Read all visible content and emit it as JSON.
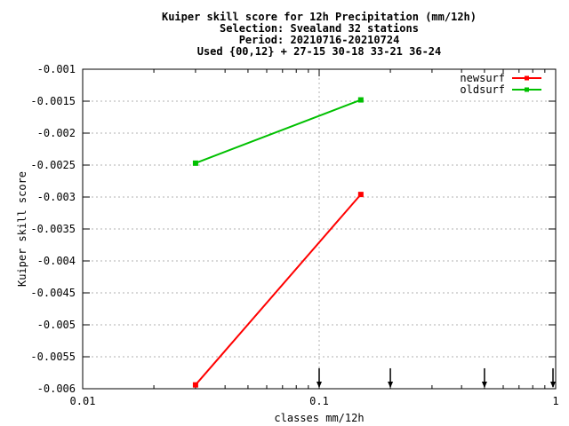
{
  "chart_data": {
    "type": "line",
    "title_lines": [
      "Kuiper skill score  for 12h Precipitation (mm/12h)",
      "Selection: Svealand     32 stations",
      "Period: 20210716-20210724",
      "Used {00,12} + 27-15 30-18 33-21 36-24"
    ],
    "xlabel": "classes mm/12h",
    "ylabel": "Kuiper skill score",
    "x_scale": "log",
    "xlim": [
      0.01,
      1
    ],
    "ylim": [
      -0.006,
      -0.001
    ],
    "x_ticks": [
      {
        "value": 0.01,
        "label": "0.01"
      },
      {
        "value": 0.1,
        "label": "0.1"
      },
      {
        "value": 1,
        "label": "1"
      }
    ],
    "y_ticks": [
      {
        "value": -0.001,
        "label": "-0.001"
      },
      {
        "value": -0.0015,
        "label": "-0.0015"
      },
      {
        "value": -0.002,
        "label": "-0.002"
      },
      {
        "value": -0.0025,
        "label": "-0.0025"
      },
      {
        "value": -0.003,
        "label": "-0.003"
      },
      {
        "value": -0.0035,
        "label": "-0.0035"
      },
      {
        "value": -0.004,
        "label": "-0.004"
      },
      {
        "value": -0.0045,
        "label": "-0.0045"
      },
      {
        "value": -0.005,
        "label": "-0.005"
      },
      {
        "value": -0.0055,
        "label": "-0.0055"
      },
      {
        "value": -0.006,
        "label": "-0.006"
      }
    ],
    "grid": true,
    "legend_position": "top-right",
    "series": [
      {
        "name": "newsurf",
        "color": "#ff0000",
        "x": [
          0.03,
          0.15
        ],
        "y": [
          -0.00594,
          -0.00296
        ]
      },
      {
        "name": "oldsurf",
        "color": "#00c000",
        "x": [
          0.03,
          0.15
        ],
        "y": [
          -0.00247,
          -0.00148
        ]
      }
    ],
    "class_markers": {
      "x": [
        0.1,
        0.2,
        0.5,
        1.0
      ],
      "y_top": -0.00568,
      "y_bottom": -0.006
    }
  }
}
